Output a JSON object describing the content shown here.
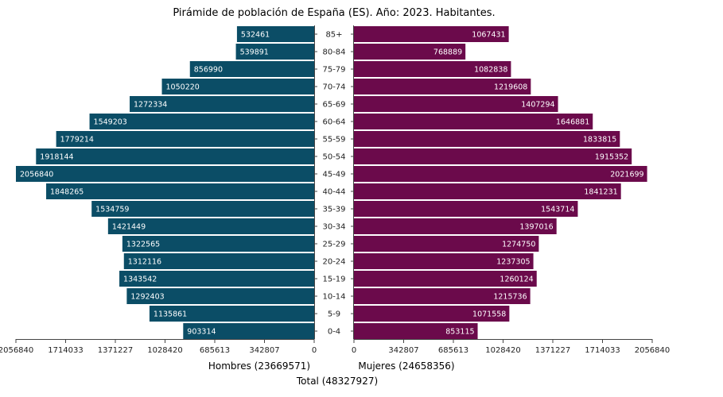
{
  "chart_data": {
    "type": "bar",
    "title": "Pirámide de población de España (ES). Año: 2023. Habitantes.",
    "age_groups": [
      "85+",
      "80-84",
      "75-79",
      "70-74",
      "65-69",
      "60-64",
      "55-59",
      "50-54",
      "45-49",
      "40-44",
      "35-39",
      "30-34",
      "25-29",
      "20-24",
      "15-19",
      "10-14",
      "5-9",
      "0-4"
    ],
    "series": [
      {
        "name": "Hombres",
        "color": "#0b4d66",
        "values": [
          532461,
          539891,
          856990,
          1050220,
          1272334,
          1549203,
          1779214,
          1918144,
          2056840,
          1848265,
          1534759,
          1421449,
          1322565,
          1312116,
          1343542,
          1292403,
          1135861,
          903314
        ]
      },
      {
        "name": "Mujeres",
        "color": "#6b0a4b",
        "values": [
          1067431,
          768889,
          1082838,
          1219608,
          1407294,
          1646881,
          1833815,
          1915352,
          2021699,
          1841231,
          1543714,
          1397016,
          1274750,
          1237305,
          1260124,
          1215736,
          1071558,
          853115
        ]
      }
    ],
    "left_axis": {
      "ticks": [
        "2056840",
        "1714033",
        "1371227",
        "1028420",
        "685613",
        "342807",
        "0"
      ],
      "label": "Hombres (23669571)"
    },
    "right_axis": {
      "ticks": [
        "0",
        "342807",
        "685613",
        "1028420",
        "1371227",
        "1714033",
        "2056840"
      ],
      "label": "Mujeres (24658356)"
    },
    "xlim": [
      0,
      2056840
    ],
    "total_label": "Total (48327927)"
  }
}
